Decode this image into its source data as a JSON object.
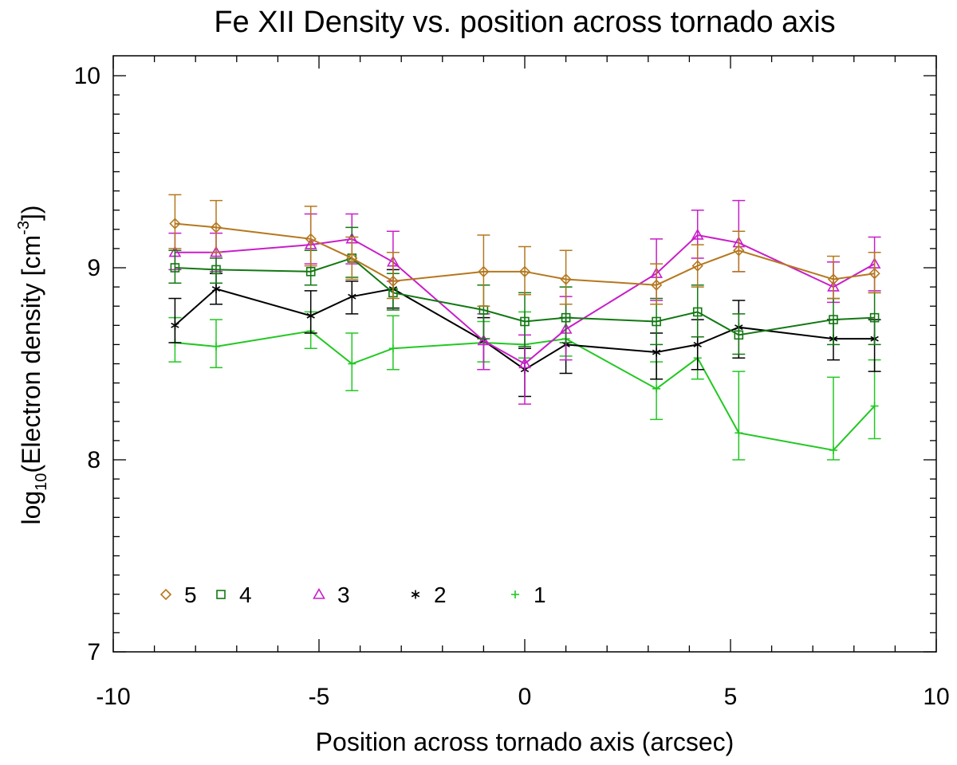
{
  "chart_data": {
    "type": "line",
    "title": "Fe XII Density vs. position across tornado axis",
    "xlabel": "Position across tornado axis (arcsec)",
    "ylabel": {
      "prefix": "log",
      "sub": "10",
      "middle": "(Electron density [cm",
      "sup": "-3",
      "suffix": "])"
    },
    "xlim": [
      -10,
      10
    ],
    "ylim": [
      7,
      10.1
    ],
    "x_major_ticks": [
      -10,
      -5,
      0,
      5,
      10
    ],
    "x_tick_labels": [
      "-10",
      "-5",
      "0",
      "5",
      "10"
    ],
    "x_minor_step": 1,
    "y_major_ticks": [
      7,
      8,
      9,
      10
    ],
    "y_tick_labels": [
      "7",
      "8",
      "9",
      "10"
    ],
    "y_minor_step": 0.1,
    "legend_position": "bottom-left",
    "series": [
      {
        "name": "1",
        "color": "#22c822",
        "marker": "plus",
        "points": [
          {
            "x": -8.5,
            "y": 8.61,
            "lo": 8.51,
            "hi": 8.74
          },
          {
            "x": -7.5,
            "y": 8.59,
            "lo": 8.48,
            "hi": 8.73
          },
          {
            "x": -5.2,
            "y": 8.67,
            "lo": 8.58,
            "hi": 8.77
          },
          {
            "x": -4.2,
            "y": 8.5,
            "lo": 8.36,
            "hi": 8.66
          },
          {
            "x": -3.2,
            "y": 8.58,
            "lo": 8.47,
            "hi": 8.75
          },
          {
            "x": -1.0,
            "y": 8.61,
            "lo": 8.51,
            "hi": 8.72
          },
          {
            "x": 0.0,
            "y": 8.6,
            "lo": 8.53,
            "hi": 8.77
          },
          {
            "x": 1.0,
            "y": 8.63,
            "lo": 8.54,
            "hi": 8.74
          },
          {
            "x": 3.2,
            "y": 8.37,
            "lo": 8.21,
            "hi": 8.51
          },
          {
            "x": 4.2,
            "y": 8.53,
            "lo": 8.42,
            "hi": 8.64
          },
          {
            "x": 5.2,
            "y": 8.14,
            "lo": 8.0,
            "hi": 8.46
          },
          {
            "x": 7.5,
            "y": 8.05,
            "lo": 8.0,
            "hi": 8.43
          },
          {
            "x": 8.5,
            "y": 8.28,
            "lo": 8.11,
            "hi": 8.52
          }
        ]
      },
      {
        "name": "2",
        "color": "#000000",
        "marker": "asterisk",
        "points": [
          {
            "x": -8.5,
            "y": 8.7,
            "lo": 8.61,
            "hi": 8.84
          },
          {
            "x": -7.5,
            "y": 8.89,
            "lo": 8.81,
            "hi": 8.97
          },
          {
            "x": -5.2,
            "y": 8.75,
            "lo": 8.66,
            "hi": 8.88
          },
          {
            "x": -4.2,
            "y": 8.85,
            "lo": 8.76,
            "hi": 8.93
          },
          {
            "x": -3.2,
            "y": 8.89,
            "lo": 8.79,
            "hi": 8.99
          },
          {
            "x": -1.0,
            "y": 8.62,
            "lo": 8.47,
            "hi": 8.74
          },
          {
            "x": 0.0,
            "y": 8.47,
            "lo": 8.33,
            "hi": 8.58
          },
          {
            "x": 1.0,
            "y": 8.6,
            "lo": 8.45,
            "hi": 8.74
          },
          {
            "x": 3.2,
            "y": 8.56,
            "lo": 8.42,
            "hi": 8.66
          },
          {
            "x": 4.2,
            "y": 8.6,
            "lo": 8.47,
            "hi": 8.73
          },
          {
            "x": 5.2,
            "y": 8.69,
            "lo": 8.53,
            "hi": 8.83
          },
          {
            "x": 7.5,
            "y": 8.63,
            "lo": 8.52,
            "hi": 8.73
          },
          {
            "x": 8.5,
            "y": 8.63,
            "lo": 8.46,
            "hi": 8.73
          }
        ]
      },
      {
        "name": "3",
        "color": "#c81ec8",
        "marker": "triangle",
        "points": [
          {
            "x": -8.5,
            "y": 9.08,
            "lo": 8.99,
            "hi": 9.18
          },
          {
            "x": -7.5,
            "y": 9.08,
            "lo": 8.98,
            "hi": 9.18
          },
          {
            "x": -5.2,
            "y": 9.12,
            "lo": 9.02,
            "hi": 9.28
          },
          {
            "x": -4.2,
            "y": 9.15,
            "lo": 9.02,
            "hi": 9.28
          },
          {
            "x": -3.2,
            "y": 9.03,
            "lo": 8.93,
            "hi": 9.19
          },
          {
            "x": -1.0,
            "y": 8.62,
            "lo": 8.47,
            "hi": 8.76
          },
          {
            "x": 0.0,
            "y": 8.5,
            "lo": 8.29,
            "hi": 8.65
          },
          {
            "x": 1.0,
            "y": 8.68,
            "lo": 8.52,
            "hi": 8.85
          },
          {
            "x": 3.2,
            "y": 8.97,
            "lo": 8.83,
            "hi": 9.15
          },
          {
            "x": 4.2,
            "y": 9.17,
            "lo": 9.05,
            "hi": 9.3
          },
          {
            "x": 5.2,
            "y": 9.13,
            "lo": 8.98,
            "hi": 9.35
          },
          {
            "x": 7.5,
            "y": 8.9,
            "lo": 8.82,
            "hi": 9.03
          },
          {
            "x": 8.5,
            "y": 9.02,
            "lo": 8.88,
            "hi": 9.16
          }
        ]
      },
      {
        "name": "4",
        "color": "#127812",
        "marker": "square",
        "points": [
          {
            "x": -8.5,
            "y": 9.0,
            "lo": 8.92,
            "hi": 9.09
          },
          {
            "x": -7.5,
            "y": 8.99,
            "lo": 8.92,
            "hi": 9.05
          },
          {
            "x": -5.2,
            "y": 8.98,
            "lo": 8.91,
            "hi": 9.09
          },
          {
            "x": -4.2,
            "y": 9.05,
            "lo": 8.95,
            "hi": 9.21
          },
          {
            "x": -3.2,
            "y": 8.87,
            "lo": 8.78,
            "hi": 8.97
          },
          {
            "x": -1.0,
            "y": 8.78,
            "lo": 8.63,
            "hi": 8.91
          },
          {
            "x": 0.0,
            "y": 8.72,
            "lo": 8.59,
            "hi": 8.87
          },
          {
            "x": 1.0,
            "y": 8.74,
            "lo": 8.61,
            "hi": 8.9
          },
          {
            "x": 3.2,
            "y": 8.72,
            "lo": 8.6,
            "hi": 8.84
          },
          {
            "x": 4.2,
            "y": 8.77,
            "lo": 8.64,
            "hi": 8.91
          },
          {
            "x": 5.2,
            "y": 8.65,
            "lo": 8.55,
            "hi": 8.76
          },
          {
            "x": 7.5,
            "y": 8.73,
            "lo": 8.6,
            "hi": 8.84
          },
          {
            "x": 8.5,
            "y": 8.74,
            "lo": 8.6,
            "hi": 8.87
          }
        ]
      },
      {
        "name": "5",
        "color": "#b4781e",
        "marker": "diamond",
        "points": [
          {
            "x": -8.5,
            "y": 9.23,
            "lo": 9.1,
            "hi": 9.38
          },
          {
            "x": -7.5,
            "y": 9.21,
            "lo": 9.08,
            "hi": 9.35
          },
          {
            "x": -5.2,
            "y": 9.15,
            "lo": 9.01,
            "hi": 9.32
          },
          {
            "x": -4.2,
            "y": 9.05,
            "lo": 8.94,
            "hi": 9.16
          },
          {
            "x": -3.2,
            "y": 8.93,
            "lo": 8.84,
            "hi": 9.08
          },
          {
            "x": -1.0,
            "y": 8.98,
            "lo": 8.8,
            "hi": 9.17
          },
          {
            "x": 0.0,
            "y": 8.98,
            "lo": 8.86,
            "hi": 9.11
          },
          {
            "x": 1.0,
            "y": 8.94,
            "lo": 8.81,
            "hi": 9.09
          },
          {
            "x": 3.2,
            "y": 8.91,
            "lo": 8.81,
            "hi": 9.02
          },
          {
            "x": 4.2,
            "y": 9.01,
            "lo": 8.9,
            "hi": 9.12
          },
          {
            "x": 5.2,
            "y": 9.09,
            "lo": 8.98,
            "hi": 9.19
          },
          {
            "x": 7.5,
            "y": 8.94,
            "lo": 8.84,
            "hi": 9.06
          },
          {
            "x": 8.5,
            "y": 8.97,
            "lo": 8.87,
            "hi": 9.08
          }
        ]
      }
    ],
    "legend": [
      {
        "label": "5",
        "marker": "diamond",
        "color": "#b4781e"
      },
      {
        "label": "4",
        "marker": "square",
        "color": "#127812"
      },
      {
        "label": "3",
        "marker": "triangle",
        "color": "#c81ec8"
      },
      {
        "label": "2",
        "marker": "asterisk",
        "color": "#000000"
      },
      {
        "label": "1",
        "marker": "plus",
        "color": "#22c822"
      }
    ]
  }
}
